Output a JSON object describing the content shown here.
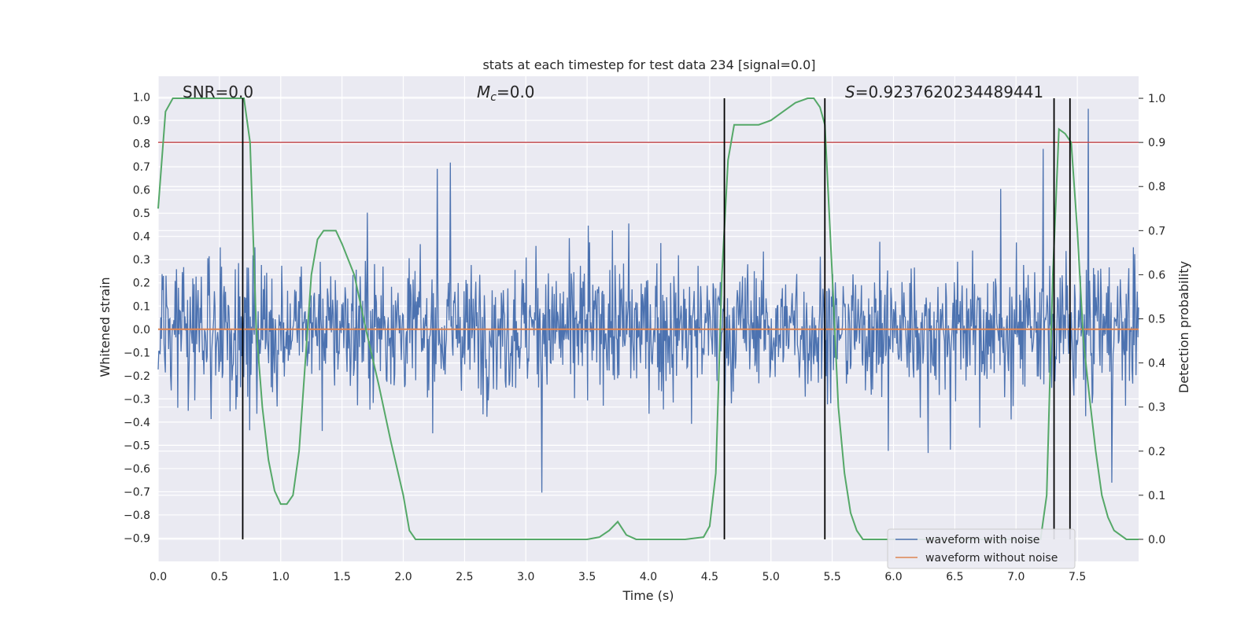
{
  "chart_data": {
    "type": "line",
    "title": "stats at each timestep for test data 234 [signal=0.0]",
    "xlabel": "Time (s)",
    "ylabel_left": "Whitened strain",
    "ylabel_right": "Detection probability",
    "xlim": [
      0,
      8
    ],
    "ylim_left": [
      -1.0,
      1.09
    ],
    "ylim_right": [
      -0.05,
      1.05
    ],
    "xticks": [
      "0.0",
      "0.5",
      "1.0",
      "1.5",
      "2.0",
      "2.5",
      "3.0",
      "3.5",
      "4.0",
      "4.5",
      "5.0",
      "5.5",
      "6.0",
      "6.5",
      "7.0",
      "7.5"
    ],
    "yticks_left": [
      "−0.9",
      "−0.8",
      "−0.7",
      "−0.6",
      "−0.5",
      "−0.4",
      "−0.3",
      "−0.2",
      "−0.1",
      "0.0",
      "0.1",
      "0.2",
      "0.3",
      "0.4",
      "0.5",
      "0.6",
      "0.7",
      "0.8",
      "0.9",
      "1.0"
    ],
    "yticks_right": [
      "0.0",
      "0.1",
      "0.2",
      "0.3",
      "0.4",
      "0.5",
      "0.6",
      "0.7",
      "0.8",
      "0.9",
      "1.0"
    ],
    "grid": true,
    "annotations": {
      "snr": "SNR=0.0",
      "mc_symbol": "M",
      "mc_sub": "c",
      "mc_value": "=0.0",
      "s_symbol": "S",
      "s_value": "=0.9237620234489441"
    },
    "threshold_line": {
      "axis": "right",
      "value": 0.9,
      "color": "#c44e52"
    },
    "vertical_markers": [
      0.69,
      4.62,
      5.44,
      7.31,
      7.44
    ],
    "series": [
      {
        "name": "waveform with noise",
        "axis": "left",
        "color": "#4c72b0",
        "style": "noise",
        "amplitude_range": [
          -0.9,
          0.95
        ],
        "typical_envelope": 0.45
      },
      {
        "name": "waveform without noise",
        "axis": "left",
        "color": "#dd8452",
        "x": [
          0,
          8
        ],
        "y": [
          0.0,
          0.0
        ]
      },
      {
        "axis": "right",
        "color": "#55a868",
        "x": [
          0.0,
          0.06,
          0.12,
          0.2,
          0.3,
          0.5,
          0.7,
          0.75,
          0.8,
          0.85,
          0.9,
          0.95,
          1.0,
          1.05,
          1.1,
          1.15,
          1.2,
          1.25,
          1.3,
          1.35,
          1.4,
          1.45,
          1.5,
          1.6,
          1.7,
          1.8,
          1.9,
          2.0,
          2.05,
          2.1,
          2.2,
          3.0,
          3.5,
          3.6,
          3.68,
          3.75,
          3.82,
          3.9,
          4.0,
          4.3,
          4.45,
          4.5,
          4.55,
          4.6,
          4.65,
          4.7,
          4.8,
          4.9,
          5.0,
          5.1,
          5.2,
          5.3,
          5.35,
          5.4,
          5.44,
          5.5,
          5.55,
          5.6,
          5.65,
          5.7,
          5.75,
          5.8,
          6.0,
          6.5,
          7.0,
          7.2,
          7.25,
          7.3,
          7.35,
          7.4,
          7.45,
          7.5,
          7.55,
          7.6,
          7.65,
          7.7,
          7.75,
          7.8,
          7.9,
          8.0
        ],
        "y": [
          0.75,
          0.97,
          1.0,
          1.0,
          1.0,
          1.0,
          1.0,
          0.9,
          0.48,
          0.3,
          0.18,
          0.11,
          0.08,
          0.08,
          0.1,
          0.2,
          0.4,
          0.6,
          0.68,
          0.7,
          0.7,
          0.7,
          0.67,
          0.6,
          0.47,
          0.35,
          0.22,
          0.1,
          0.02,
          0.0,
          0.0,
          0.0,
          0.0,
          0.005,
          0.02,
          0.04,
          0.01,
          0.0,
          0.0,
          0.0,
          0.005,
          0.03,
          0.15,
          0.6,
          0.86,
          0.94,
          0.94,
          0.94,
          0.95,
          0.97,
          0.99,
          1.0,
          1.0,
          0.98,
          0.94,
          0.6,
          0.3,
          0.15,
          0.06,
          0.02,
          0.0,
          0.0,
          0.0,
          0.0,
          0.0,
          0.0,
          0.1,
          0.6,
          0.93,
          0.92,
          0.9,
          0.7,
          0.45,
          0.32,
          0.2,
          0.1,
          0.05,
          0.02,
          0.0,
          0.0
        ]
      }
    ],
    "legend": {
      "placement": "lower-right"
    }
  }
}
